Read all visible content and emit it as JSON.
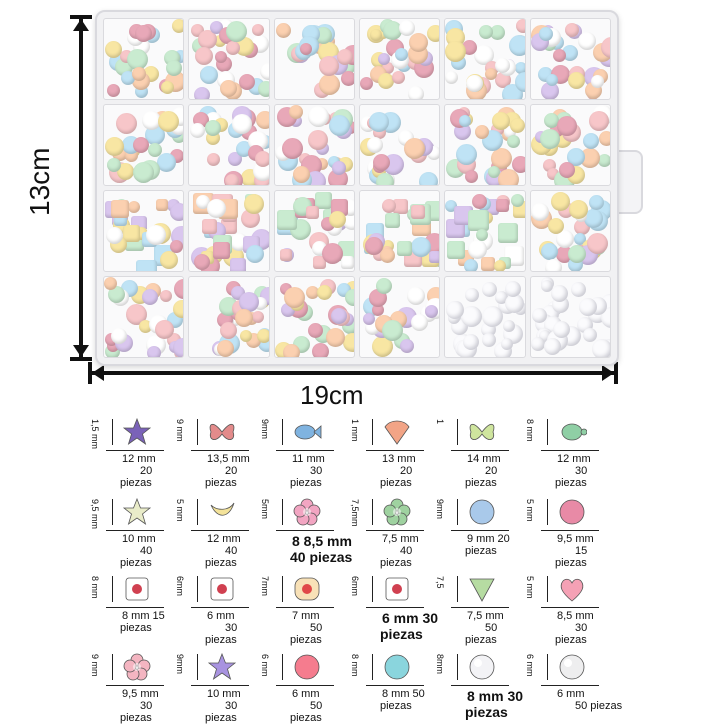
{
  "dimensions": {
    "height": "13cm",
    "width": "19cm"
  },
  "box_colors": [
    "#f7c6c9",
    "#bfe3f5",
    "#f8e6a3",
    "#c9ebd0",
    "#d9c6ee",
    "#fbd0b0",
    "#ffffff",
    "#e8a8b8"
  ],
  "legend": [
    {
      "icon": "star",
      "color": "#7a62b8",
      "dim_v": "1,5 mm",
      "size": "12 mm",
      "qty": "20",
      "unit": "piezas"
    },
    {
      "icon": "butterfly",
      "color": "#e38b8b",
      "dim_v": "9 mm",
      "size": "13,5 mm",
      "qty": "20",
      "unit": "piezas"
    },
    {
      "icon": "fish",
      "color": "#7fb3e0",
      "dim_v": "9mm",
      "size": "11 mm",
      "qty": "30",
      "unit": "piezas"
    },
    {
      "icon": "shell",
      "color": "#f2a486",
      "dim_v": "1 mm",
      "size": "13 mm",
      "qty": "20",
      "unit": "piezas"
    },
    {
      "icon": "butterfly",
      "color": "#cfe59e",
      "dim_v": "1",
      "size": "14 mm",
      "qty": "20",
      "unit": "piezas"
    },
    {
      "icon": "turtle",
      "color": "#8fcfa5",
      "dim_v": "8 mm",
      "size": "12 mm",
      "qty": "30",
      "unit": "piezas"
    },
    {
      "icon": "starfish",
      "color": "#e9ecc9",
      "dim_v": "9,5 mm",
      "size": "10 mm",
      "qty": "40",
      "unit": "piezas"
    },
    {
      "icon": "moon",
      "color": "#f4e39a",
      "dim_v": "5 mm",
      "size": "12 mm",
      "qty": "40",
      "unit": "piezas"
    },
    {
      "icon": "flower",
      "color": "#f2a5c2",
      "dim_v": "5mm",
      "size": "8 8,5 mm",
      "qty": "40 piezas",
      "unit": ""
    },
    {
      "icon": "rose",
      "color": "#9fd2a0",
      "dim_v": "7,5mm",
      "size": "7,5 mm",
      "qty": "40",
      "unit": "piezas"
    },
    {
      "icon": "ball",
      "color": "#a9c9ea",
      "dim_v": "9mm",
      "size": "9 mm 20",
      "qty": "",
      "unit": "piezas"
    },
    {
      "icon": "ball-pattern",
      "color": "#e88aa6",
      "dim_v": "5 mm",
      "size": "9,5 mm",
      "qty": "15",
      "unit": "piezas"
    },
    {
      "icon": "cube",
      "color": "#ffffff",
      "dim_v": "8 mm",
      "size": "8 mm 15",
      "qty": "",
      "unit": "piezas"
    },
    {
      "icon": "cube",
      "color": "#ffffff",
      "dim_v": "6mm",
      "size": "6 mm",
      "qty": "30",
      "unit": "piezas"
    },
    {
      "icon": "letter-disc",
      "color": "#f8e1b7",
      "dim_v": "7mm",
      "size": "7 mm",
      "qty": "50",
      "unit": "piezas"
    },
    {
      "icon": "heart-cube",
      "color": "#ffffff",
      "dim_v": "6mm",
      "size": "6 mm 30",
      "qty": "piezas",
      "unit": ""
    },
    {
      "icon": "triangle",
      "color": "#b6dca2",
      "dim_v": "7,5",
      "size": "7,5 mm",
      "qty": "50",
      "unit": "piezas"
    },
    {
      "icon": "heart",
      "color": "#f5a1b5",
      "dim_v": "5 mm",
      "size": "8,5 mm",
      "qty": "30",
      "unit": "piezas"
    },
    {
      "icon": "flower5",
      "color": "#f4b5c1",
      "dim_v": "9 mm",
      "size": "9,5 mm",
      "qty": "30",
      "unit": "piezas"
    },
    {
      "icon": "star5",
      "color": "#a893e0",
      "dim_v": "9mm",
      "size": "10 mm",
      "qty": "30",
      "unit": "piezas"
    },
    {
      "icon": "ball",
      "color": "#f57c8e",
      "dim_v": "6 mm",
      "size": "6 mm",
      "qty": "50",
      "unit": "piezas"
    },
    {
      "icon": "ball-mint",
      "color": "#8ad5dd",
      "dim_v": "8 mm",
      "size": "8 mm 50",
      "qty": "",
      "unit": "piezas"
    },
    {
      "icon": "pearl",
      "color": "#f3f3f6",
      "dim_v": "8mm",
      "size": "8 mm 30",
      "qty": "piezas",
      "unit": ""
    },
    {
      "icon": "pearl-small",
      "color": "#eeeeef",
      "dim_v": "6 mm",
      "size": "6 mm",
      "qty": "50 piezas",
      "unit": ""
    }
  ]
}
